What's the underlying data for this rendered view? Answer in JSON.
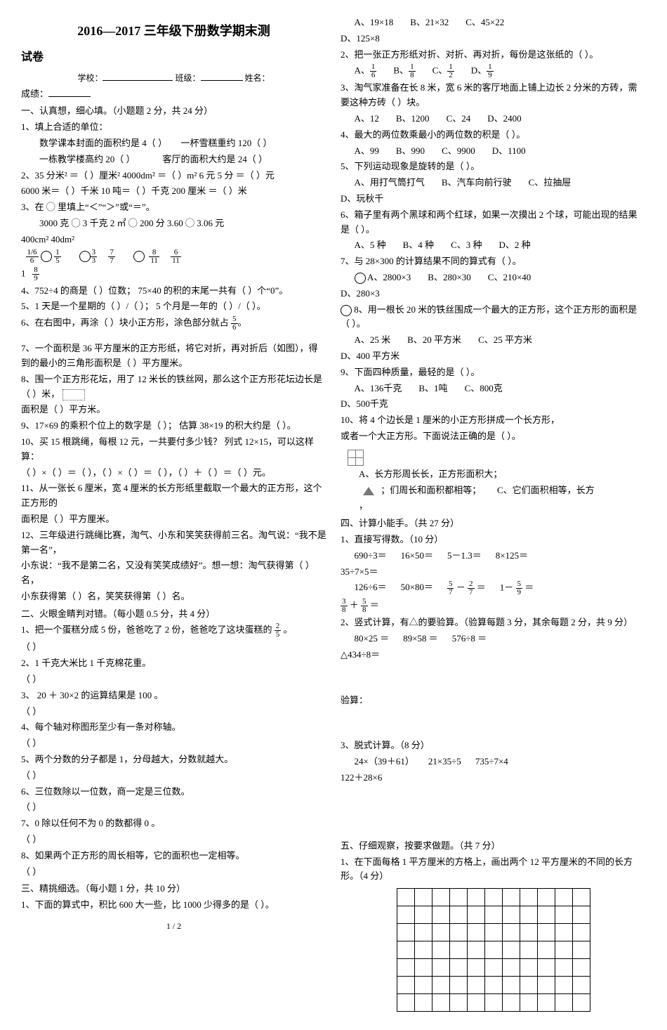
{
  "title": "2016—2017 三年级下册数学期末测",
  "subtitle_paper": "试卷",
  "header_line": {
    "school_lbl": "学校：",
    "class_lbl": "班级：",
    "name_lbl": "姓名：",
    "score_lbl": "成绩："
  },
  "sec1": {
    "title": "一、认真想，细心填。（小题题 2 分，共 24 分）",
    "q1": {
      "stem": "1、填上合适的单位：",
      "a": "数学课本封面的面积约是 4（          ）",
      "b": "一杯雪糕重约 120（    ）",
      "c": "一栋教学楼高约 20（          ）",
      "d": "客厅的面积大约是 24（        ）"
    },
    "q2": "2、35 分米² ＝（      ）厘米²          4000dm² ＝（      ）m²          6 元 5 分 ＝（      ）元",
    "q2b": "    6000 米＝（      ）千米          10 吨＝（      ）千克          200 厘米 ＝（      ）米",
    "q3": {
      "stem": "3、在 ◯ 里填上“＜”“＞”或“＝”。",
      "a": "3000 克 ◯ 3 千克      2 ㎡ ◯ 200 分      3.60 ◯ 3.06 元",
      "b": "400cm²      40dm²"
    },
    "q3c_labels": [
      "1/6",
      "1/5",
      "3",
      "3",
      "7",
      "7",
      "8",
      "11",
      "6",
      "11",
      "1",
      "8/9"
    ],
    "q4": "4、752÷4 的商是（      ）位数；    75×40 的积的末尾一共有（      ）个“0”。",
    "q5": "5、1 天是一个星期的（  ）/（  ）；    5 个月是一年的（  ）/（  ）。",
    "q6_a": "6、在右图中，再涂（      ）块小正方形，涂色部分就占",
    "q6_frac": [
      "5",
      "6"
    ],
    "q7": "7、一个面积是 36 平方厘米的正方形纸，将它对折，再对折后（如图），得到的最小的三角形面积是（      ）平方厘米。",
    "q8": "8、围一个正方形花坛，用了 12 米长的铁丝网，那么这个正方形花坛边长是（    ）米，",
    "q8b": "    面积是（          ）平方米。",
    "q9": "9、17×69 的乘积个位上的数字是（      ）；    估算 38×19 的积大约是（        ）。",
    "q10": "10、买 15 根跳绳，每根 12 元，一共要付多少钱？  列式 12×15，可以这样算：",
    "q10b": "    （    ）×（    ）＝（    ），（    ）×（    ）＝（    ），（    ）＋（    ）＝（    ）元。",
    "q11": "11、从一张长 6 厘米，宽 4 厘米的长方形纸里截取一个最大的正方形，这个正方形的",
    "q11b": "    面积是（          ）平方厘米。",
    "q12": "12、三年级进行跳绳比赛，淘气、小东和笑笑获得前三名。淘气说：“我不是第一名”，",
    "q12b": "    小东说：“我不是第二名，又没有笑笑成绩好”。想一想：淘气获得第（      ）名，",
    "q12c": "    小东获得第（      ）名，笑笑获得第（      ）名。"
  },
  "sec2": {
    "title": "二、火眼金睛判对错。（每小题 0.5 分，共 4 分）",
    "q1a": "1、把一个蛋糕分成 5 份，爸爸吃了 2 份，爸爸吃了这块蛋糕的",
    "q1_frac": [
      "2",
      "5"
    ],
    "q1b": "。",
    "items": [
      "2、1 千克大米比 1 千克棉花重。",
      "3、 20 ＋ 30×2 的运算结果是 100 。",
      "4、每个轴对称图形至少有一条对称轴。",
      "5、两个分数的分子都是 1，分母越大，分数就越大。",
      "6、三位数除以一位数，商一定是三位数。",
      "7、0 除以任何不为 0 的数都得 0 。",
      "8、如果两个正方形的周长相等，它的面积也一定相等。"
    ],
    "tf": "（        ）"
  },
  "sec3": {
    "title": "三、精挑细选。（每小题 1 分，共 10 分）",
    "q1": "1、下面的算式中，积比 600 大一些，比 1000 少得多的是（      ）。",
    "q1_opts": [
      "A、19×18",
      "B、21×32",
      "C、45×22",
      "D、125×8"
    ],
    "q2": "2、把一张正方形纸对折、对折、再对折，每份是这张纸的（      ）。",
    "q2_opts": [
      [
        "A、",
        "1",
        "6"
      ],
      [
        "B、",
        "1",
        "8"
      ],
      [
        "C、",
        "1",
        "2"
      ],
      [
        "D、",
        "1",
        "9"
      ]
    ],
    "q3": "3、淘气家准备在长 8 米，宽 6 米的客厅地面上铺上边长 2 分米的方砖，需要这种方砖（      ）块。",
    "q3_opts": [
      "A、12",
      "B、1200",
      "C、24",
      "D、2400"
    ],
    "q4": "4、最大的两位数乘最小的两位数的积是（      ）。",
    "q4_opts": [
      "A、99",
      "B、990",
      "C、9900",
      "D、1100"
    ],
    "q5": "5、下列运动现象是旋转的是（      ）。",
    "q5_opts": [
      "A、用打气筒打气",
      "B、汽车向前行驶",
      "C、拉抽屉",
      "D、玩秋千"
    ],
    "q6": "6、箱子里有两个黑球和两个红球，如果一次摸出 2 个球，可能出现的结果是（      ）。",
    "q6_opts": [
      "A、5 种",
      "B、4 种",
      "C、3 种",
      "D、2 种"
    ],
    "q7": "7、与 28×300 的计算结果不同的算式有（      ）。",
    "q7_opts": [
      "A、2800×3",
      "B、280×30",
      "C、210×40",
      "D、280×3"
    ],
    "q8": "8、用一根长 20 米的铁丝围成一个最大的正方形，这个正方形的面积是（      ）。",
    "q8_opts": [
      "A、25 米",
      "B、20 平方米",
      "C、25 平方米",
      "D、400 平方米"
    ],
    "q9": "9、下面四种质量，最轻的是（      ）。",
    "q9_opts": [
      "A、136千克",
      "B、1吨",
      "C、800克",
      "D、500千克"
    ],
    "q10": "10、将 4 个边长是 1 厘米的小正方形拼成一个长方形，",
    "q10b": "     或者一个大正方形。下面说法正确的是（      ）。",
    "q10_opts": [
      "A、长方形周长长，正方形面积大；",
      "；们周长和面积都相等；",
      "C、它们面积相等，长方"
    ]
  },
  "sec4": {
    "title": "四、计算小能手。（共 27 分）",
    "p1": "1、直接写得数。（10 分）",
    "p1_row1": [
      "690÷3＝",
      "16×50＝",
      "5－1.3＝",
      "8×125＝"
    ],
    "p1_row1b": "           35÷7×5＝",
    "p1_row2": [
      "126÷6＝",
      "50×80＝"
    ],
    "p1_row2_frac": [
      [
        "5",
        "7",
        "－",
        "2",
        "7",
        "＝"
      ],
      [
        "1－",
        "5",
        "9",
        "＝"
      ]
    ],
    "p1_row3_frac": [
      [
        "3",
        "8",
        "＋",
        "5",
        "8",
        "＝"
      ]
    ],
    "p2": "2、竖式计算，有△的要验算。（验算每题 3 分，其余每题 2 分，共 9 分）",
    "p2_items": [
      "80×25 ＝",
      "89×58 ＝",
      "576÷8 ＝",
      "△434÷8＝"
    ],
    "verify_lbl": "验算：",
    "p3": "3、脱式计算。（8 分）",
    "p3_items": [
      "24×（39＋61）",
      "21×35÷5",
      "735÷7×4",
      "122＋28×6"
    ]
  },
  "sec5": {
    "title": "五、仔细观察，按要求做题。（共 7 分）",
    "q1": "1、在下面每格 1 平方厘米的方格上，画出两个 12 平方厘米的不同的长方形。（4 分）",
    "grid_cols": 11,
    "grid_rows": 7
  },
  "footer": "1 / 2"
}
